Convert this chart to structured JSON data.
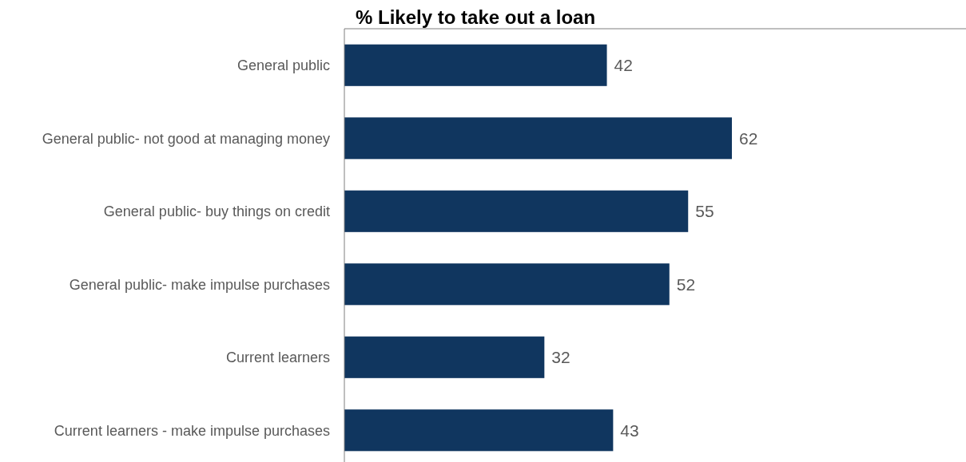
{
  "chart_data": {
    "type": "bar",
    "orientation": "horizontal",
    "title": "% Likely to take out a loan",
    "categories": [
      "General public",
      "General public- not good at managing money",
      "General public- buy things on credit",
      "General public- make impulse purchases",
      "Current learners",
      "Current learners - make impulse purchases"
    ],
    "values": [
      42,
      62,
      55,
      52,
      32,
      43
    ],
    "color": "#10365f",
    "data_labels": true
  }
}
